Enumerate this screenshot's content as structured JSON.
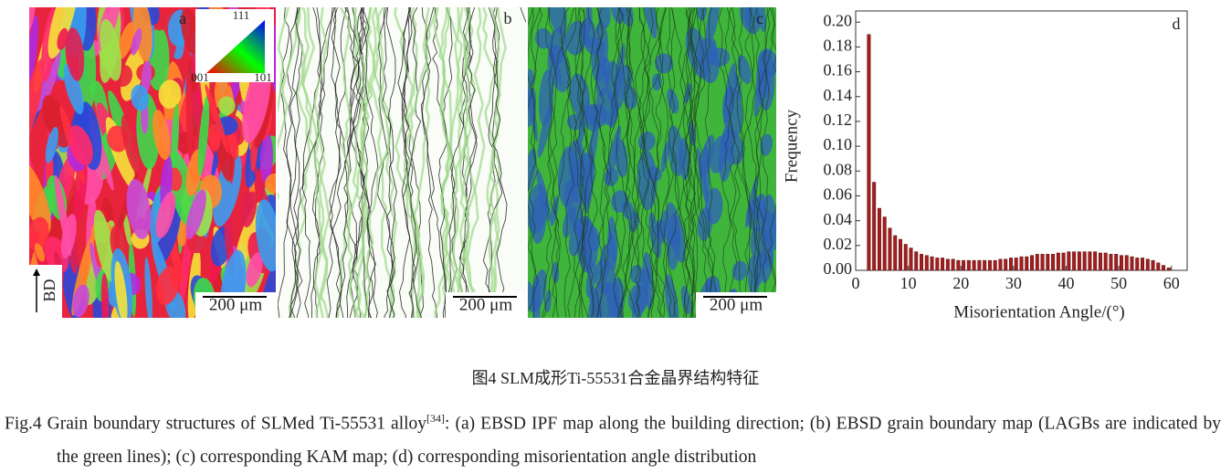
{
  "panels": [
    {
      "label": "a",
      "scale_bar": "200 μm"
    },
    {
      "label": "b",
      "scale_bar": "200 μm"
    },
    {
      "label": "c",
      "scale_bar": "200 μm"
    }
  ],
  "ipf_key": {
    "top": "111",
    "left": "001",
    "right": "101"
  },
  "direction_label": "BD",
  "chart_data": {
    "type": "histogram",
    "annotation": "d",
    "xlabel": "Misorientation Angle/(°)",
    "ylabel": "Frequency",
    "color": "#a31d1d",
    "bins": [
      2,
      3,
      4,
      5,
      6,
      7,
      8,
      9,
      10,
      11,
      12,
      13,
      14,
      15,
      16,
      17,
      18,
      19,
      20,
      21,
      22,
      23,
      24,
      25,
      26,
      27,
      28,
      29,
      30,
      31,
      32,
      33,
      34,
      35,
      36,
      37,
      38,
      39,
      40,
      41,
      42,
      43,
      44,
      45,
      46,
      47,
      48,
      49,
      50,
      51,
      52,
      53,
      54,
      55,
      56,
      57,
      58,
      59,
      60
    ],
    "values": [
      0.19,
      0.071,
      0.05,
      0.043,
      0.034,
      0.028,
      0.025,
      0.021,
      0.018,
      0.015,
      0.013,
      0.012,
      0.011,
      0.01,
      0.01,
      0.009,
      0.009,
      0.008,
      0.008,
      0.008,
      0.008,
      0.008,
      0.008,
      0.008,
      0.008,
      0.009,
      0.009,
      0.01,
      0.01,
      0.011,
      0.011,
      0.012,
      0.013,
      0.013,
      0.013,
      0.013,
      0.014,
      0.014,
      0.015,
      0.015,
      0.015,
      0.015,
      0.015,
      0.015,
      0.014,
      0.014,
      0.013,
      0.013,
      0.012,
      0.012,
      0.011,
      0.01,
      0.01,
      0.009,
      0.008,
      0.006,
      0.004,
      0.002
    ],
    "xlim": [
      0,
      63
    ],
    "ylim": [
      0,
      0.209
    ],
    "xticks": [
      0,
      10,
      20,
      30,
      40,
      50,
      60
    ],
    "yticks": [
      {
        "value": 0,
        "label": "0.00"
      },
      {
        "value": 0.02,
        "label": "0.02"
      },
      {
        "value": 0.04,
        "label": "0.04"
      },
      {
        "value": 0.06,
        "label": "0.06"
      },
      {
        "value": 0.08,
        "label": "0.08"
      },
      {
        "value": 0.1,
        "label": "0.10"
      },
      {
        "value": 0.12,
        "label": "0.12"
      },
      {
        "value": 0.14,
        "label": "0.14"
      },
      {
        "value": 0.16,
        "label": "0.16"
      },
      {
        "value": 0.18,
        "label": "0.18"
      },
      {
        "value": 0.2,
        "label": "0.20"
      }
    ]
  },
  "caption": {
    "zh": "图4  SLM成形Ti-55531合金晶界结构特征",
    "en_lead": "Fig.4  Grain boundary structures of SLMed Ti-55531 alloy",
    "ref": "[34]",
    "en_rest": ": (a) EBSD IPF map along the building direction; (b) EBSD grain boundary map (LAGBs are indicated by the green lines); (c) corresponding KAM map; (d) corresponding misorientation angle distribution"
  }
}
